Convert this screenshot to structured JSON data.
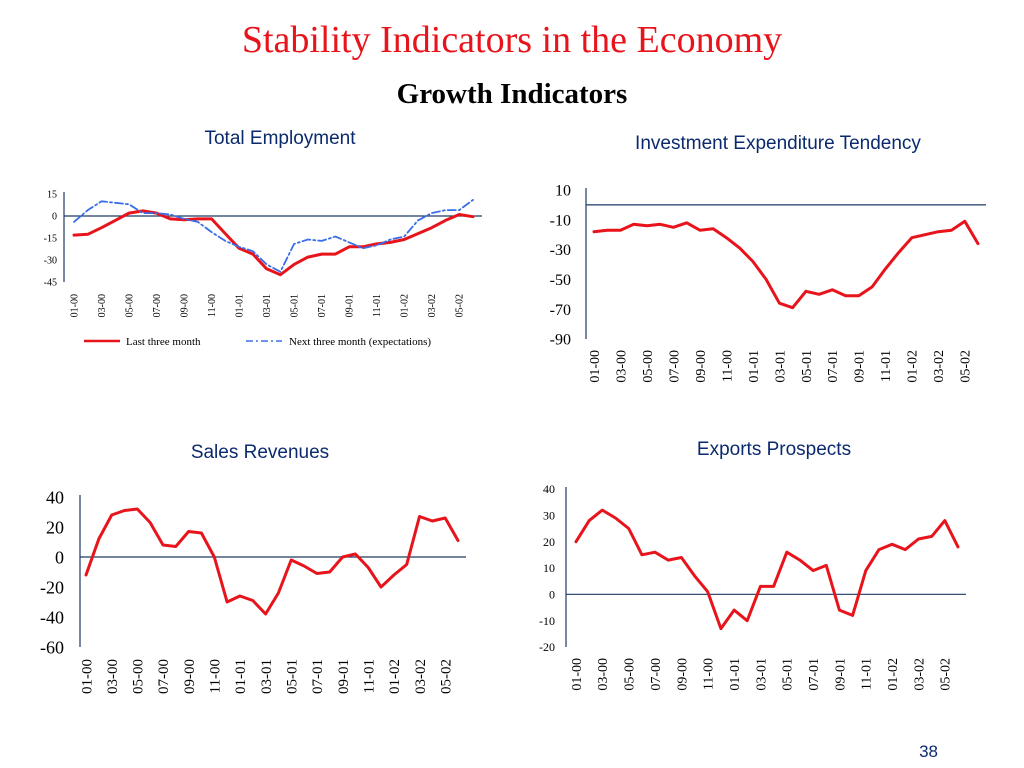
{
  "slide": {
    "title": "Stability Indicators in the Economy",
    "subtitle": "Growth Indicators",
    "page_number": "38"
  },
  "colors": {
    "series_red": "#e8141c",
    "series_blue": "#3a6ee8",
    "axis": "#1f3a64"
  },
  "chart_data": [
    {
      "type": "line",
      "title": "Total Employment",
      "ylim": [
        -45,
        15
      ],
      "yticks": [
        15,
        0,
        -15,
        -30,
        -45
      ],
      "x": [
        "01-00",
        "02-00",
        "03-00",
        "04-00",
        "05-00",
        "06-00",
        "07-00",
        "08-00",
        "09-00",
        "10-00",
        "11-00",
        "12-00",
        "01-01",
        "02-01",
        "03-01",
        "04-01",
        "05-01",
        "06-01",
        "07-01",
        "08-01",
        "09-01",
        "10-01",
        "11-01",
        "12-01",
        "01-02",
        "02-02",
        "03-02",
        "04-02",
        "05-02",
        "06-02"
      ],
      "xtick_labels": [
        "01-00",
        "03-00",
        "05-00",
        "07-00",
        "09-00",
        "11-00",
        "01-01",
        "03-01",
        "05-01",
        "07-01",
        "09-01",
        "11-01",
        "01-02",
        "03-02",
        "05-02"
      ],
      "legend_position": "bottom",
      "series": [
        {
          "name": "Last three month",
          "style": "solid",
          "color": "#e8141c",
          "values": [
            -13,
            -12.5,
            -8,
            -3,
            2,
            3.5,
            2,
            -2,
            -2.5,
            -2,
            -2,
            -12,
            -22,
            -26,
            -36,
            -40,
            -33,
            -28,
            -26,
            -26,
            -21,
            -21,
            -19,
            -18,
            -16,
            -12,
            -8,
            -3,
            1,
            -0.5
          ]
        },
        {
          "name": "Next three month (expectations)",
          "style": "dashdot",
          "color": "#3a6ee8",
          "values": [
            -4,
            4,
            10,
            9,
            8,
            2,
            2,
            1,
            -2,
            -4,
            -11,
            -17,
            -21,
            -24,
            -33,
            -38,
            -19,
            -16,
            -17,
            -14,
            -18,
            -22,
            -20,
            -16,
            -14,
            -3,
            2,
            4,
            4,
            11
          ]
        }
      ]
    },
    {
      "type": "line",
      "title": "Investment Expenditure Tendency",
      "ylim": [
        -90,
        10
      ],
      "yticks": [
        10,
        -10,
        -30,
        -50,
        -70,
        -90
      ],
      "x": [
        "01-00",
        "02-00",
        "03-00",
        "04-00",
        "05-00",
        "06-00",
        "07-00",
        "08-00",
        "09-00",
        "10-00",
        "11-00",
        "12-00",
        "01-01",
        "02-01",
        "03-01",
        "04-01",
        "05-01",
        "06-01",
        "07-01",
        "08-01",
        "09-01",
        "10-01",
        "11-01",
        "12-01",
        "01-02",
        "02-02",
        "03-02",
        "04-02",
        "05-02",
        "06-02"
      ],
      "xtick_labels": [
        "01-00",
        "03-00",
        "05-00",
        "07-00",
        "09-00",
        "11-00",
        "01-01",
        "03-01",
        "05-01",
        "07-01",
        "09-01",
        "11-01",
        "01-02",
        "03-02",
        "05-02"
      ],
      "series": [
        {
          "color": "#e8141c",
          "values": [
            -18,
            -17,
            -17,
            -13,
            -14,
            -13,
            -15,
            -12,
            -17,
            -16,
            -22,
            -29,
            -38,
            -50,
            -66,
            -69,
            -58,
            -60,
            -57,
            -61,
            -61,
            -55,
            -43,
            -32,
            -22,
            -20,
            -18,
            -17,
            -11,
            -26
          ]
        }
      ]
    },
    {
      "type": "line",
      "title": "Sales Revenues",
      "ylim": [
        -60,
        40
      ],
      "yticks": [
        40,
        20,
        0,
        -20,
        -40,
        -60
      ],
      "x": [
        "01-00",
        "02-00",
        "03-00",
        "04-00",
        "05-00",
        "06-00",
        "07-00",
        "08-00",
        "09-00",
        "10-00",
        "11-00",
        "12-00",
        "01-01",
        "02-01",
        "03-01",
        "04-01",
        "05-01",
        "06-01",
        "07-01",
        "08-01",
        "09-01",
        "10-01",
        "11-01",
        "12-01",
        "01-02",
        "02-02",
        "03-02",
        "04-02",
        "05-02",
        "06-02"
      ],
      "xtick_labels": [
        "01-00",
        "03-00",
        "05-00",
        "07-00",
        "09-00",
        "11-00",
        "01-01",
        "03-01",
        "05-01",
        "07-01",
        "09-01",
        "11-01",
        "01-02",
        "03-02",
        "05-02"
      ],
      "series": [
        {
          "color": "#e8141c",
          "values": [
            -12,
            12,
            28,
            31,
            32,
            23,
            8,
            7,
            17,
            16,
            0,
            -30,
            -26,
            -29,
            -38,
            -24,
            -2,
            -6,
            -11,
            -10,
            0,
            2,
            -7,
            -20,
            -12,
            -5,
            27,
            24,
            26,
            11
          ]
        }
      ]
    },
    {
      "type": "line",
      "title": "Exports Prospects",
      "ylim": [
        -20,
        40
      ],
      "yticks": [
        40,
        30,
        20,
        10,
        0,
        -10,
        -20
      ],
      "x": [
        "01-00",
        "02-00",
        "03-00",
        "04-00",
        "05-00",
        "06-00",
        "07-00",
        "08-00",
        "09-00",
        "10-00",
        "11-00",
        "12-00",
        "01-01",
        "02-01",
        "03-01",
        "04-01",
        "05-01",
        "06-01",
        "07-01",
        "08-01",
        "09-01",
        "10-01",
        "11-01",
        "12-01",
        "01-02",
        "02-02",
        "03-02",
        "04-02",
        "05-02",
        "06-02"
      ],
      "xtick_labels": [
        "01-00",
        "03-00",
        "05-00",
        "07-00",
        "09-00",
        "11-00",
        "01-01",
        "03-01",
        "05-01",
        "07-01",
        "09-01",
        "11-01",
        "01-02",
        "03-02",
        "05-02"
      ],
      "series": [
        {
          "color": "#e8141c",
          "values": [
            20,
            28,
            32,
            29,
            25,
            15,
            16,
            13,
            14,
            7,
            1,
            -13,
            -6,
            -10,
            3,
            3,
            16,
            13,
            9,
            11,
            -6,
            -8,
            9,
            17,
            19,
            17,
            21,
            22,
            28,
            18
          ]
        }
      ]
    }
  ]
}
